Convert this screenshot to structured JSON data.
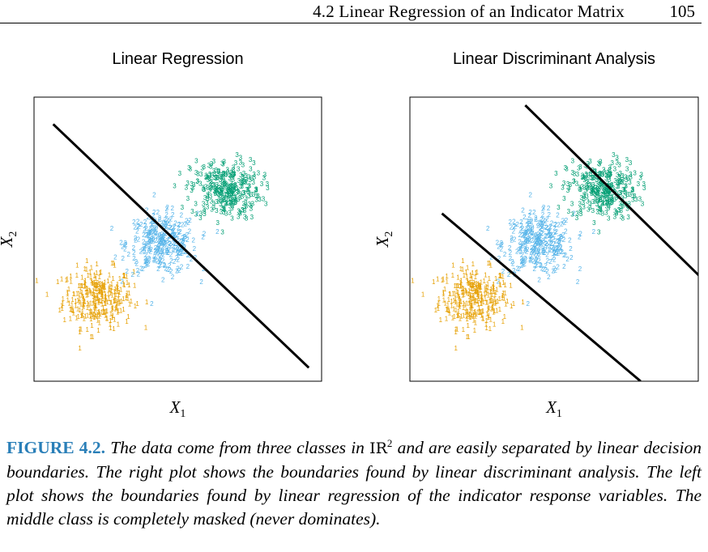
{
  "running_head": {
    "section_title": "4.2 Linear Regression of an Indicator Matrix",
    "page_number": "105"
  },
  "caption": {
    "label": "FIGURE 4.2.",
    "text_before": " The data come from three classes in ",
    "set_symbol": "IR",
    "superscript": "2",
    "text_after": " and are easily separated by linear decision boundaries. The right plot shows the boundaries found by linear discriminant analysis. The left plot shows the boundaries found by linear regression of the indicator response variables. The middle class is completely masked (never dominates)."
  },
  "chart_data": [
    {
      "type": "scatter",
      "title": "Linear Regression",
      "xlabel": "X1",
      "ylabel": "X2",
      "grid": false,
      "legend": "none",
      "series": [
        {
          "label_char": "1",
          "color": "#E69F00",
          "center": [
            -2.0,
            -2.0
          ],
          "n": 300
        },
        {
          "label_char": "2",
          "color": "#56B4E9",
          "center": [
            0.0,
            0.0
          ],
          "n": 300
        },
        {
          "label_char": "3",
          "color": "#009E73",
          "center": [
            2.0,
            2.0
          ],
          "n": 300
        }
      ],
      "boundaries": [
        {
          "from": [
            -3.4,
            4.5
          ],
          "to": [
            4.6,
            -4.5
          ]
        }
      ]
    },
    {
      "type": "scatter",
      "title": "Linear Discriminant Analysis",
      "xlabel": "X1",
      "ylabel": "X2",
      "grid": false,
      "legend": "none",
      "series": [
        {
          "label_char": "1",
          "color": "#E69F00",
          "center": [
            -2.0,
            -2.0
          ],
          "n": 300
        },
        {
          "label_char": "2",
          "color": "#56B4E9",
          "center": [
            0.0,
            0.0
          ],
          "n": 300
        },
        {
          "label_char": "3",
          "color": "#009E73",
          "center": [
            2.0,
            2.0
          ],
          "n": 300
        }
      ],
      "boundaries": [
        {
          "from": [
            -3.0,
            1.2
          ],
          "to": [
            3.2,
            -5.0
          ]
        },
        {
          "from": [
            -0.4,
            5.2
          ],
          "to": [
            5.2,
            -1.3
          ]
        }
      ]
    }
  ]
}
